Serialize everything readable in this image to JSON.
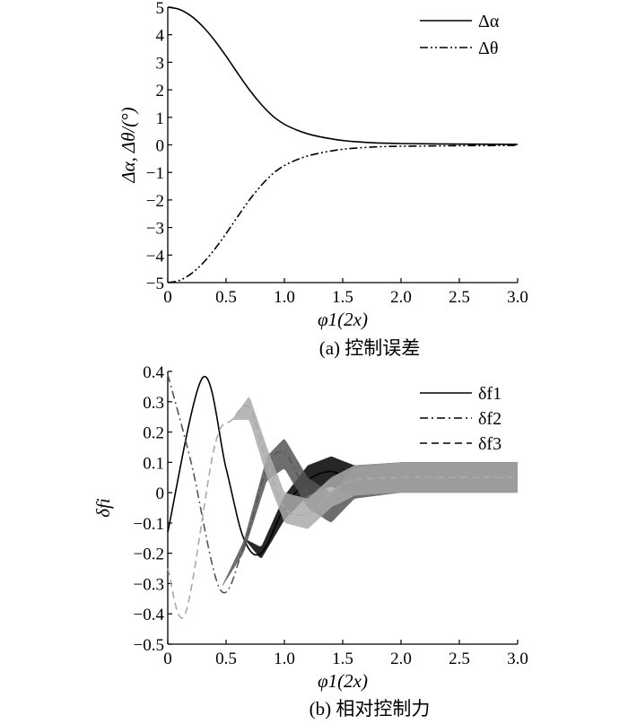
{
  "chart_data": [
    {
      "type": "line",
      "caption": "(a) 控制误差",
      "xlabel": "φ1(2x)",
      "ylabel": "Δα, Δθ/(°)",
      "xlim": [
        0,
        3.0
      ],
      "ylim": [
        -5,
        5
      ],
      "x_ticks": [
        "0",
        "0.5",
        "1.0",
        "1.5",
        "2.0",
        "2.5",
        "3.0"
      ],
      "y_ticks": [
        "5",
        "4",
        "3",
        "2",
        "1",
        "0",
        "−1",
        "−2",
        "−3",
        "−4",
        "−5"
      ],
      "legend_position": "top-right",
      "grid": false,
      "series": [
        {
          "name": "Δα",
          "style": "solid",
          "x": [
            0,
            0.1,
            0.2,
            0.3,
            0.4,
            0.5,
            0.6,
            0.7,
            0.8,
            0.9,
            1.0,
            1.1,
            1.2,
            1.3,
            1.4,
            1.5,
            1.6,
            1.8,
            2.0,
            2.5,
            3.0
          ],
          "y": [
            5.0,
            4.92,
            4.68,
            4.3,
            3.8,
            3.22,
            2.6,
            2.0,
            1.48,
            1.05,
            0.75,
            0.55,
            0.4,
            0.3,
            0.22,
            0.16,
            0.12,
            0.07,
            0.05,
            0.03,
            0.02
          ]
        },
        {
          "name": "Δθ",
          "style": "dash-dot-dot",
          "x": [
            0,
            0.1,
            0.2,
            0.3,
            0.4,
            0.5,
            0.6,
            0.7,
            0.8,
            0.9,
            1.0,
            1.1,
            1.2,
            1.3,
            1.4,
            1.5,
            1.6,
            1.8,
            2.0,
            2.5,
            3.0
          ],
          "y": [
            -5.0,
            -4.92,
            -4.68,
            -4.3,
            -3.8,
            -3.22,
            -2.6,
            -2.0,
            -1.48,
            -1.05,
            -0.75,
            -0.55,
            -0.4,
            -0.3,
            -0.22,
            -0.16,
            -0.12,
            -0.07,
            -0.05,
            -0.03,
            -0.02
          ]
        }
      ]
    },
    {
      "type": "line",
      "caption": "(b) 相对控制力",
      "xlabel": "φ1(2x)",
      "ylabel": "δfi",
      "xlim": [
        0,
        3.0
      ],
      "ylim": [
        -0.5,
        0.4
      ],
      "x_ticks": [
        "0",
        "0.5",
        "1.0",
        "1.5",
        "2.0",
        "2.5",
        "3.0"
      ],
      "y_ticks": [
        "0.4",
        "0.3",
        "0.2",
        "0.1",
        "0",
        "−0.1",
        "−0.2",
        "−0.3",
        "−0.4",
        "−0.5"
      ],
      "legend_position": "top-right",
      "grid": false,
      "series": [
        {
          "name": "δf1",
          "style": "solid",
          "color": "#000000",
          "x": [
            0,
            0.3,
            0.5,
            0.65,
            0.8,
            1.0,
            1.2,
            1.4,
            1.6,
            2.0,
            2.5,
            3.0
          ],
          "y": [
            -0.13,
            0.38,
            0.08,
            -0.15,
            -0.2,
            -0.05,
            0.04,
            0.07,
            0.04,
            0.05,
            0.05,
            0.05
          ],
          "band_halfwidth": [
            0,
            0,
            0,
            0,
            0.02,
            0.04,
            0.05,
            0.05,
            0.05,
            0.05,
            0.05,
            0.05
          ]
        },
        {
          "name": "δf2",
          "style": "dash-dot",
          "color": "#555555",
          "x": [
            0,
            0.2,
            0.45,
            0.65,
            0.85,
            1.0,
            1.2,
            1.4,
            1.6,
            2.0,
            2.5,
            3.0
          ],
          "y": [
            0.39,
            0.1,
            -0.32,
            -0.18,
            0.08,
            0.13,
            0.0,
            -0.05,
            0.03,
            0.05,
            0.05,
            0.05
          ],
          "band_halfwidth": [
            0,
            0,
            0,
            0.02,
            0.04,
            0.05,
            0.05,
            0.05,
            0.05,
            0.05,
            0.05,
            0.05
          ]
        },
        {
          "name": "δf3",
          "style": "dashed",
          "color": "#aaaaaa",
          "x": [
            0,
            0.15,
            0.4,
            0.55,
            0.7,
            0.85,
            1.0,
            1.2,
            1.4,
            1.6,
            2.0,
            2.5,
            3.0
          ],
          "y": [
            -0.25,
            -0.4,
            0.15,
            0.24,
            0.28,
            0.1,
            -0.05,
            -0.07,
            0.0,
            0.04,
            0.05,
            0.05,
            0.05
          ],
          "band_halfwidth": [
            0,
            0,
            0,
            0,
            0.04,
            0.05,
            0.05,
            0.05,
            0.05,
            0.05,
            0.05,
            0.05,
            0.05
          ]
        }
      ]
    }
  ]
}
